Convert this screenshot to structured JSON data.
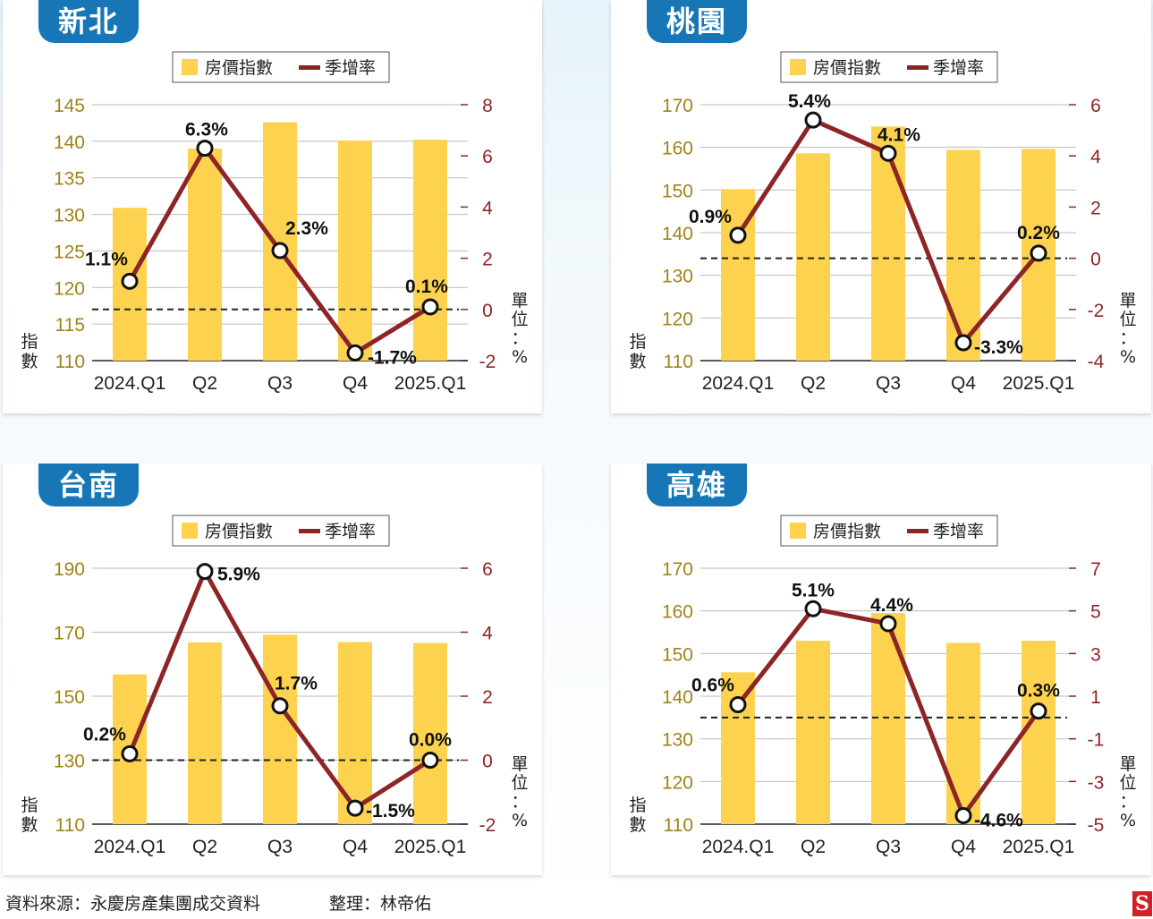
{
  "legend": {
    "bar_label": "房價指數",
    "line_label": "季增率"
  },
  "left_axis_name": [
    "指",
    "數"
  ],
  "right_axis_name": [
    "單",
    "位",
    "：",
    "%"
  ],
  "colors": {
    "bar": "#fcd24f",
    "line": "#8d2527",
    "axis_left": "#a1821a",
    "axis_right": "#8d2527",
    "badge": "#1777b6"
  },
  "footer": {
    "source": "資料來源：永慶房產集團成交資料",
    "editor": "整理：林帝佑",
    "logo": "S"
  },
  "chart_data": [
    {
      "type": "bar",
      "title": "新北",
      "categories": [
        "2024.Q1",
        "Q2",
        "Q3",
        "Q4",
        "2025.Q1"
      ],
      "series": [
        {
          "name": "房價指數",
          "type": "bar",
          "axis": "left",
          "values": [
            130.9,
            139,
            142.6,
            140.1,
            140.2
          ]
        },
        {
          "name": "季增率",
          "type": "line",
          "axis": "right",
          "values": [
            1.1,
            6.3,
            2.3,
            -1.7,
            0.1
          ],
          "labels": [
            "1.1%",
            "6.3%",
            "2.3%",
            "-1.7%",
            "0.1%"
          ]
        }
      ],
      "y_left": {
        "ticks": [
          110,
          115,
          120,
          125,
          130,
          135,
          140,
          145
        ],
        "ylim": [
          110,
          145
        ]
      },
      "y_right": {
        "ticks": [
          8,
          6,
          4,
          2,
          0,
          -2
        ],
        "tick_labels": [
          "8",
          "6",
          "4",
          "2",
          "0",
          "-2"
        ],
        "ylim": [
          -2,
          8
        ]
      },
      "zero_line": true
    },
    {
      "type": "bar",
      "title": "桃園",
      "categories": [
        "2024.Q1",
        "Q2",
        "Q3",
        "Q4",
        "2025.Q1"
      ],
      "series": [
        {
          "name": "房價指數",
          "type": "bar",
          "axis": "left",
          "values": [
            150.2,
            158.6,
            164.9,
            159.4,
            159.6
          ]
        },
        {
          "name": "季增率",
          "type": "line",
          "axis": "right",
          "values": [
            0.9,
            5.4,
            4.1,
            -3.3,
            0.2
          ],
          "labels": [
            "0.9%",
            "5.4%",
            "4.1%",
            "-3.3%",
            "0.2%"
          ]
        }
      ],
      "y_left": {
        "ticks": [
          110,
          120,
          130,
          140,
          150,
          160,
          170
        ],
        "ylim": [
          110,
          170
        ]
      },
      "y_right": {
        "ticks": [
          6,
          4,
          2,
          0,
          -2,
          -4
        ],
        "tick_labels": [
          "6",
          "4",
          "2",
          "0",
          "-2",
          "-4"
        ],
        "ylim": [
          -4,
          6
        ]
      },
      "zero_line": true
    },
    {
      "type": "bar",
      "title": "台南",
      "categories": [
        "2024.Q1",
        "Q2",
        "Q3",
        "Q4",
        "2025.Q1"
      ],
      "series": [
        {
          "name": "房價指數",
          "type": "bar",
          "axis": "left",
          "values": [
            156.8,
            166.8,
            169.2,
            166.9,
            166.6
          ]
        },
        {
          "name": "季增率",
          "type": "line",
          "axis": "right",
          "values": [
            0.2,
            5.9,
            1.7,
            -1.5,
            0.0
          ],
          "labels": [
            "0.2%",
            "5.9%",
            "1.7%",
            "-1.5%",
            "0.0%"
          ]
        }
      ],
      "y_left": {
        "ticks": [
          110,
          130,
          150,
          170,
          190
        ],
        "ylim": [
          110,
          190
        ]
      },
      "y_right": {
        "ticks": [
          6,
          4,
          2,
          0,
          -2
        ],
        "tick_labels": [
          "6",
          "4",
          "2",
          "0",
          "-2"
        ],
        "ylim": [
          -2,
          6
        ]
      },
      "zero_line": true
    },
    {
      "type": "bar",
      "title": "高雄",
      "categories": [
        "2024.Q1",
        "Q2",
        "Q3",
        "Q4",
        "2025.Q1"
      ],
      "series": [
        {
          "name": "房價指數",
          "type": "bar",
          "axis": "left",
          "values": [
            145.6,
            153,
            159.5,
            152.5,
            153
          ]
        },
        {
          "name": "季增率",
          "type": "line",
          "axis": "right",
          "values": [
            0.6,
            5.1,
            4.4,
            -4.6,
            0.3
          ],
          "labels": [
            "0.6%",
            "5.1%",
            "4.4%",
            "-4.6%",
            "0.3%"
          ]
        }
      ],
      "y_left": {
        "ticks": [
          110,
          120,
          130,
          140,
          150,
          160,
          170
        ],
        "ylim": [
          110,
          170
        ]
      },
      "y_right": {
        "ticks": [
          7,
          5,
          3,
          1,
          -1,
          -3,
          -5
        ],
        "tick_labels": [
          "7",
          "5",
          "3",
          "1",
          "-1",
          "-3",
          "-5"
        ],
        "ylim": [
          -5,
          7
        ]
      },
      "zero_line": true
    }
  ]
}
